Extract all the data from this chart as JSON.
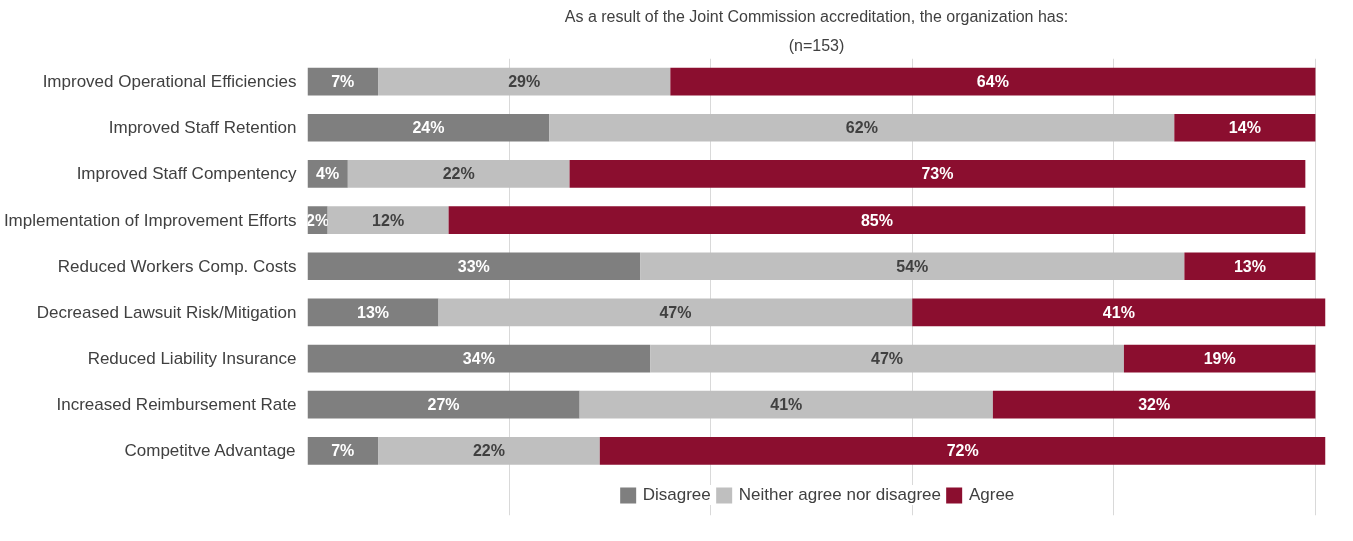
{
  "chart_data": {
    "type": "bar",
    "orientation": "horizontal",
    "stacked": true,
    "title": "As a result of the Joint Commission accreditation, the organization has:",
    "subtitle": "(n=153)",
    "categories": [
      "Improved Operational Efficiencies",
      "Improved Staff Retention",
      "Improved Staff Compentency",
      "Implementation of Improvement Efforts",
      "Reduced Workers Comp. Costs",
      "Decreased Lawsuit Risk/Mitigation",
      "Reduced Liability Insurance",
      "Increased Reimbursement Rate",
      "Competitve Advantage"
    ],
    "series": [
      {
        "name": "Disagree",
        "color": "#7f7f7f",
        "values": [
          7,
          24,
          4,
          2,
          33,
          13,
          34,
          27,
          7
        ],
        "value_labels": [
          "7%",
          "24%",
          "4%",
          "2%",
          "33%",
          "13%",
          "34%",
          "27%",
          "7%"
        ]
      },
      {
        "name": "Neither agree nor disagree",
        "color": "#bfbfbf",
        "values": [
          29,
          62,
          22,
          12,
          54,
          47,
          47,
          41,
          22
        ],
        "value_labels": [
          "29%",
          "62%",
          "22%",
          "12%",
          "54%",
          "47%",
          "47%",
          "41%",
          "22%"
        ]
      },
      {
        "name": "Agree",
        "color": "#8b0e2f",
        "values": [
          64,
          14,
          73,
          85,
          13,
          41,
          19,
          32,
          72
        ],
        "value_labels": [
          "64%",
          "14%",
          "73%",
          "85%",
          "13%",
          "41%",
          "19%",
          "32%",
          "72%"
        ]
      }
    ],
    "grid": "x",
    "tick_labels": "y",
    "legend": "bottom"
  }
}
